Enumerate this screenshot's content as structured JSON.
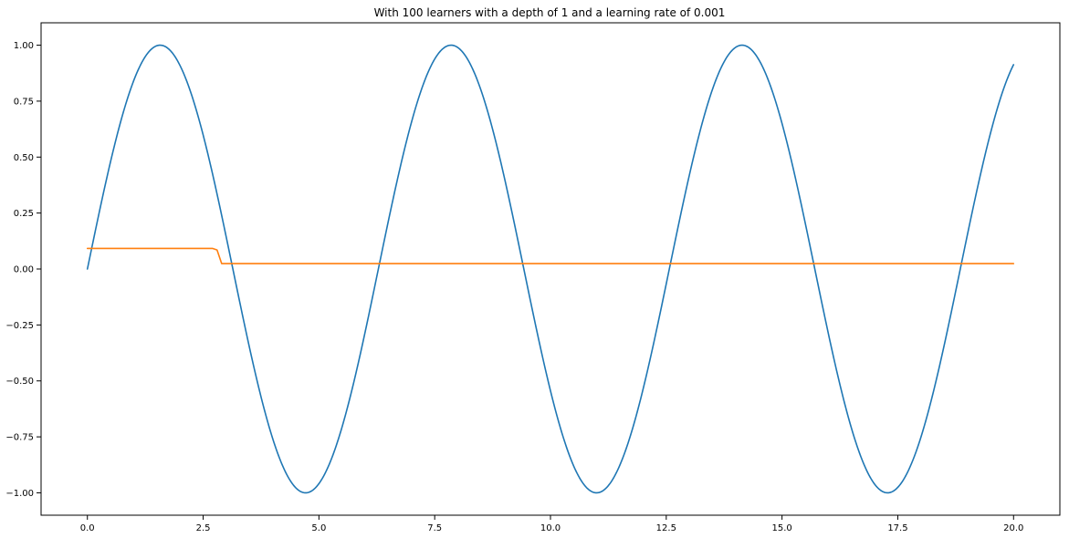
{
  "chart_data": {
    "type": "line",
    "title": "With 100 learners with a depth of 1 and a learning rate of 0.001",
    "xlabel": "",
    "ylabel": "",
    "xlim": [
      -1.0,
      21.0
    ],
    "ylim": [
      -1.1,
      1.1
    ],
    "grid": false,
    "legend": "none",
    "x_ticks": [
      0.0,
      2.5,
      5.0,
      7.5,
      10.0,
      12.5,
      15.0,
      17.5,
      20.0
    ],
    "x_tick_labels": [
      "0.0",
      "2.5",
      "5.0",
      "7.5",
      "10.0",
      "12.5",
      "15.0",
      "17.5",
      "20.0"
    ],
    "y_ticks": [
      1.0,
      0.75,
      0.5,
      0.25,
      0.0,
      -0.25,
      -0.5,
      -0.75,
      -1.0
    ],
    "y_tick_labels": [
      "1.00",
      "0.75",
      "0.50",
      "0.25",
      "0.00",
      "−0.25",
      "−0.50",
      "−0.75",
      "−1.00"
    ],
    "series": [
      {
        "color": "#1f77b4",
        "x": [
          0.0,
          0.5,
          1.0,
          1.5708,
          2.0,
          2.5,
          3.0,
          3.5,
          4.0,
          4.7124,
          5.5,
          6.0,
          6.2832,
          7.0,
          7.854,
          8.5,
          9.0,
          9.4248,
          10.0,
          10.9956,
          11.5,
          12.0,
          12.5664,
          13.0,
          14.1372,
          15.0,
          15.708,
          16.5,
          17.2788,
          18.0,
          18.8496,
          19.5,
          20.0
        ],
        "values": [
          0.0,
          0.479,
          0.841,
          1.0,
          0.909,
          0.598,
          0.141,
          -0.351,
          -0.757,
          -1.0,
          -0.706,
          -0.279,
          0.0,
          0.657,
          1.0,
          0.798,
          0.412,
          0.0,
          -0.544,
          -1.0,
          -0.875,
          -0.537,
          0.0,
          0.42,
          1.0,
          0.65,
          0.0,
          -0.712,
          -1.0,
          -0.751,
          0.0,
          0.603,
          0.913
        ]
      },
      {
        "color": "#ff7f0e",
        "x": [
          0.0,
          2.7,
          2.8,
          2.9,
          20.0
        ],
        "values": [
          0.092,
          0.092,
          0.085,
          0.024,
          0.024
        ]
      }
    ]
  }
}
